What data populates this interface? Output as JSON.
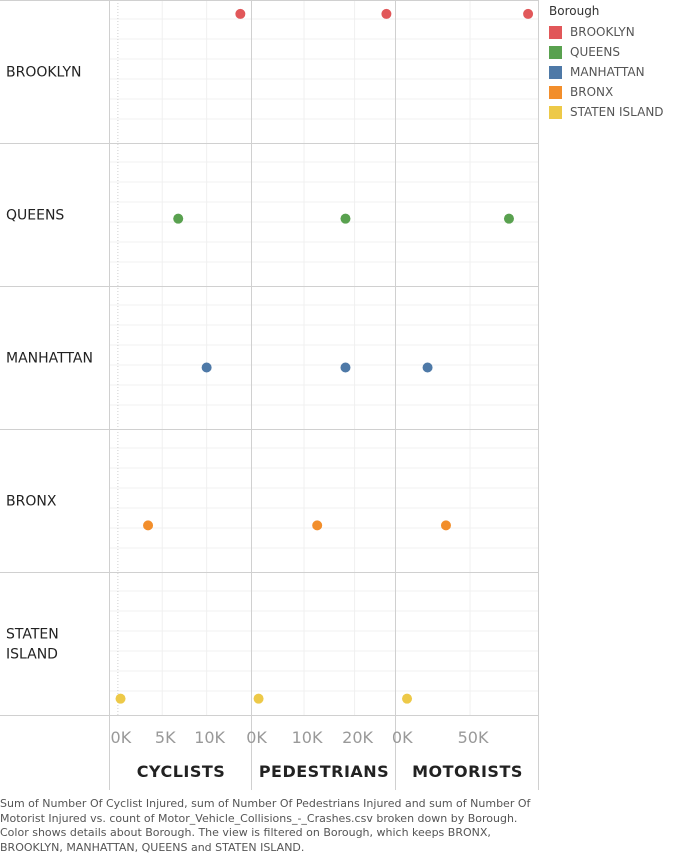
{
  "chart_data": {
    "type": "scatter",
    "rows": [
      "BROOKLYN",
      "QUEENS",
      "MANHATTAN",
      "BRONX",
      "STATEN ISLAND"
    ],
    "columns": [
      {
        "label": "CYCLISTS",
        "ticks": [
          {
            "value": 0,
            "label": "0K"
          },
          {
            "value": 5000,
            "label": "5K"
          },
          {
            "value": 10000,
            "label": "10K"
          }
        ],
        "xlim": [
          -1000,
          15000
        ]
      },
      {
        "label": "PEDESTRIANS",
        "ticks": [
          {
            "value": 0,
            "label": "0K"
          },
          {
            "value": 10000,
            "label": "10K"
          },
          {
            "value": 20000,
            "label": "20K"
          }
        ],
        "xlim": [
          -500,
          28000
        ]
      },
      {
        "label": "MOTORISTS",
        "ticks": [
          {
            "value": 0,
            "label": "0K"
          },
          {
            "value": 50000,
            "label": "50K"
          }
        ],
        "xlim": [
          -3000,
          98000
        ]
      }
    ],
    "series": [
      {
        "name": "BROOKLYN",
        "color": "#e15759",
        "row": 0,
        "x": [
          13800,
          26300,
          91000
        ],
        "y": 48800
      },
      {
        "name": "QUEENS",
        "color": "#59a14f",
        "row": 1,
        "x": [
          6800,
          18200,
          77500
        ],
        "y": 23500
      },
      {
        "name": "MANHATTAN",
        "color": "#4e79a7",
        "row": 2,
        "x": [
          10000,
          18200,
          20000
        ],
        "y": 21100
      },
      {
        "name": "BRONX",
        "color": "#f28e2b",
        "row": 3,
        "x": [
          3400,
          12600,
          33000
        ],
        "y": 15000
      },
      {
        "name": "STATEN ISLAND",
        "color": "#edc948",
        "row": 4,
        "x": [
          300,
          1000,
          5500
        ],
        "y": 2600
      }
    ],
    "y_axis_shown": false,
    "grid": true,
    "legend": {
      "title": "Borough",
      "position": "right"
    }
  },
  "caption": "Sum of Number Of Cyclist Injured, sum of Number Of Pedestrians Injured and sum of Number Of Motorist Injured vs. count of Motor_Vehicle_Collisions_-_Crashes.csv broken down by Borough.  Color shows details about Borough. The view is filtered on Borough, which keeps BRONX, BROOKLYN, MANHATTAN, QUEENS and STATEN ISLAND."
}
